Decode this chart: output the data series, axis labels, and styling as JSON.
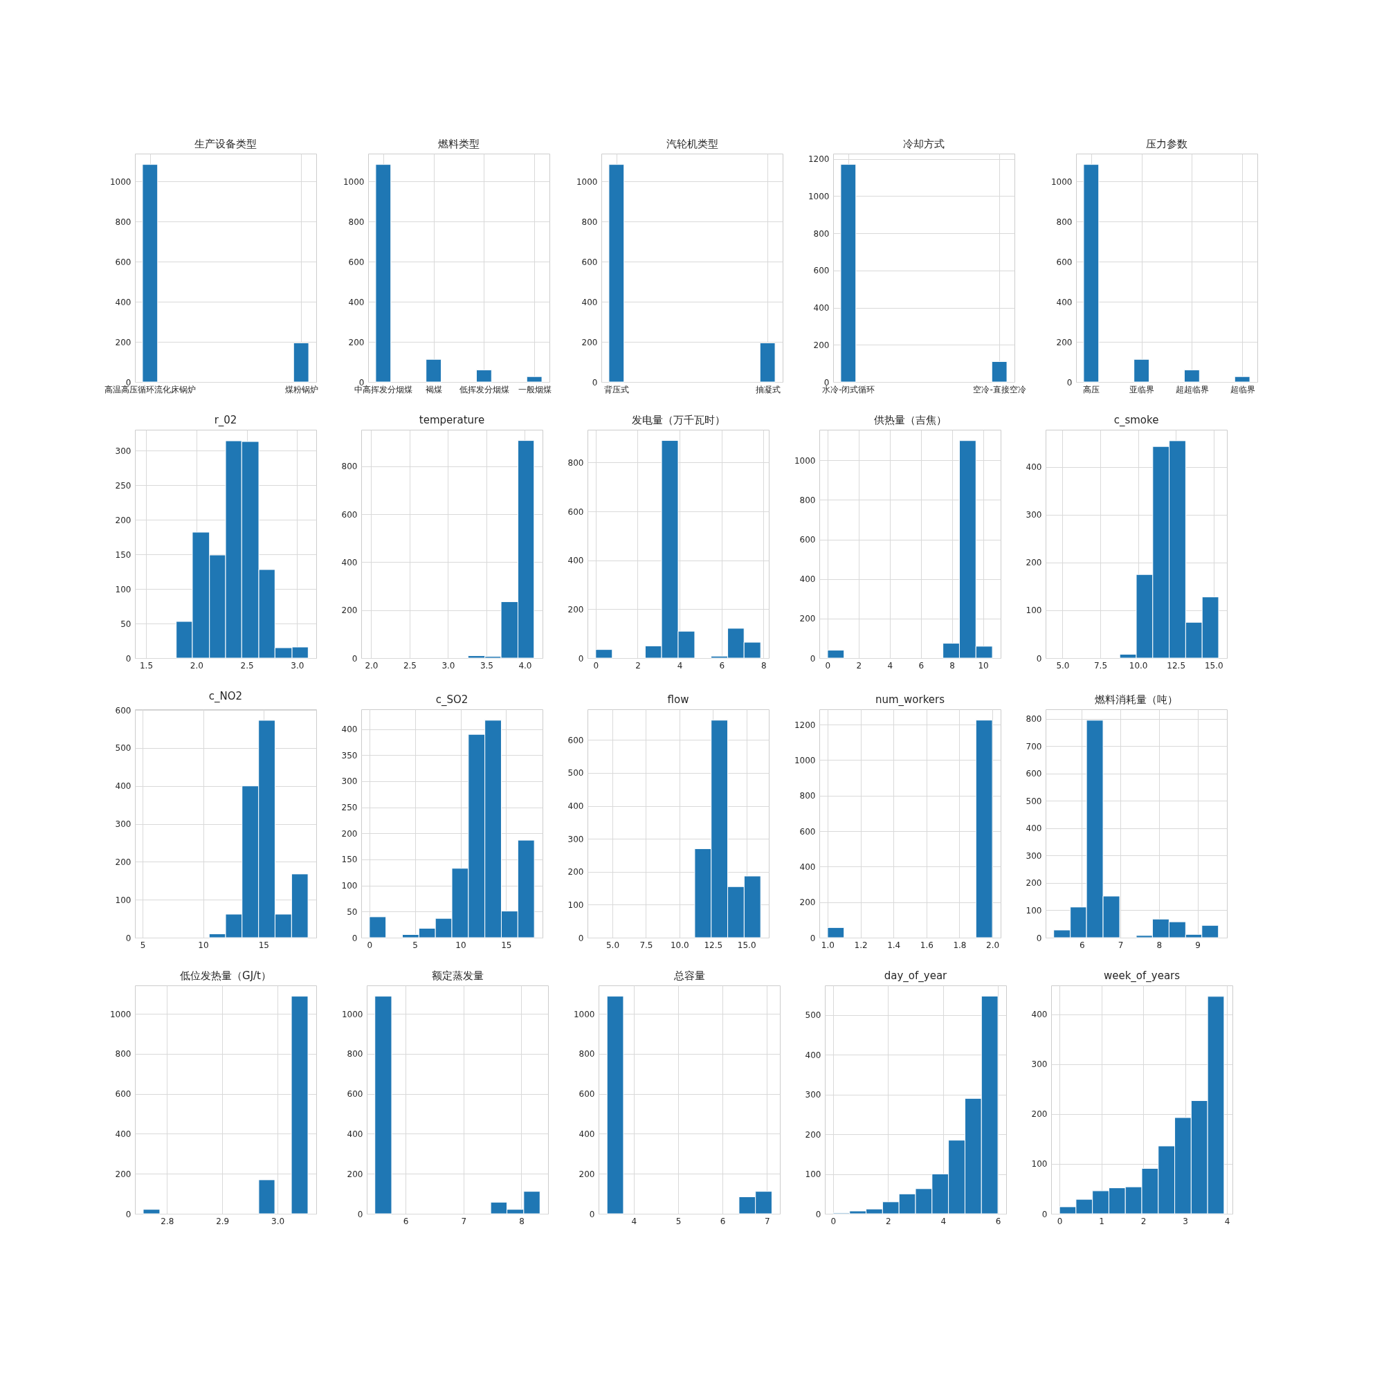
{
  "chart_data": [
    {
      "type": "bar",
      "title": "生产设备类型",
      "color": "#1f77b4",
      "grid": true,
      "categories": [
        "高温高压循环流化床锅炉",
        "煤粉锅炉"
      ],
      "values": [
        1085,
        195
      ],
      "ylim": [
        0,
        1139
      ],
      "yticks": [
        0,
        200,
        400,
        600,
        800,
        1000
      ]
    },
    {
      "type": "bar",
      "title": "燃料类型",
      "color": "#1f77b4",
      "grid": true,
      "categories": [
        "中高挥发分烟煤",
        "褐煤",
        "低挥发分烟煤",
        "一般烟煤"
      ],
      "values": [
        1085,
        113,
        60,
        27
      ],
      "ylim": [
        0,
        1139
      ],
      "yticks": [
        0,
        200,
        400,
        600,
        800,
        1000
      ]
    },
    {
      "type": "bar",
      "title": "汽轮机类型",
      "color": "#1f77b4",
      "grid": true,
      "categories": [
        "背压式",
        "抽凝式"
      ],
      "values": [
        1085,
        195
      ],
      "ylim": [
        0,
        1139
      ],
      "yticks": [
        0,
        200,
        400,
        600,
        800,
        1000
      ]
    },
    {
      "type": "bar",
      "title": "冷却方式",
      "color": "#1f77b4",
      "grid": true,
      "categories": [
        "水冷-闭式循环",
        "空冷-直接空冷"
      ],
      "values": [
        1170,
        110
      ],
      "ylim": [
        0,
        1228
      ],
      "yticks": [
        0,
        200,
        400,
        600,
        800,
        1000,
        1200
      ]
    },
    {
      "type": "bar",
      "title": "压力参数",
      "color": "#1f77b4",
      "grid": true,
      "categories": [
        "高压",
        "亚临界",
        "超超临界",
        "超临界"
      ],
      "values": [
        1085,
        113,
        60,
        27
      ],
      "ylim": [
        0,
        1139
      ],
      "yticks": [
        0,
        200,
        400,
        600,
        800,
        1000
      ]
    },
    {
      "type": "histogram",
      "title": "r_02",
      "color": "#1f77b4",
      "grid": true,
      "bins": [
        1.8,
        1.96,
        2.13,
        2.29,
        2.45,
        2.62,
        2.78,
        2.95,
        3.11
      ],
      "values": [
        53,
        182,
        149,
        314,
        313,
        128,
        15,
        16
      ],
      "xlim": [
        1.39,
        3.19
      ],
      "xticks": [
        1.5,
        {
          "value": 2,
          "label": "2.0"
        },
        2.5,
        {
          "value": 3,
          "label": "3.0"
        }
      ],
      "ylim": [
        0,
        330
      ],
      "yticks": [
        0,
        50,
        100,
        150,
        200,
        250,
        300
      ]
    },
    {
      "type": "histogram",
      "title": "temperature",
      "color": "#1f77b4",
      "grid": true,
      "bins": [
        3.26,
        3.48,
        3.69,
        3.91,
        4.12
      ],
      "values": [
        10,
        7,
        235,
        907
      ],
      "xlim": [
        1.87,
        4.23
      ],
      "xticks": [
        {
          "value": 2,
          "label": "2.0"
        },
        2.5,
        {
          "value": 3,
          "label": "3.0"
        },
        3.5,
        {
          "value": 4,
          "label": "4.0"
        }
      ],
      "ylim": [
        0,
        952
      ],
      "yticks": [
        0,
        200,
        400,
        600,
        800
      ]
    },
    {
      "type": "histogram",
      "title": "发电量（万千瓦时）",
      "color": "#1f77b4",
      "grid": true,
      "bins": [
        0,
        0.79,
        2.36,
        3.14,
        3.93,
        4.72,
        5.5,
        6.29,
        7.07,
        7.86
      ],
      "values": [
        35,
        0,
        50,
        890,
        110,
        0,
        8,
        122,
        65
      ],
      "xlim": [
        -0.39,
        8.25
      ],
      "xticks": [
        0,
        2,
        4,
        6,
        8
      ],
      "ylim": [
        0,
        934
      ],
      "yticks": [
        0,
        200,
        400,
        600,
        800
      ]
    },
    {
      "type": "histogram",
      "title": "供热量（吉焦）",
      "color": "#1f77b4",
      "grid": true,
      "bins": [
        0,
        1.06,
        7.42,
        8.48,
        9.54,
        10.6
      ],
      "values": [
        40,
        0,
        75,
        1100,
        60
      ],
      "xlim": [
        -0.53,
        11.13
      ],
      "xticks": [
        0,
        2,
        4,
        6,
        8,
        10
      ],
      "ylim": [
        0,
        1155
      ],
      "yticks": [
        0,
        200,
        400,
        600,
        800,
        1000
      ]
    },
    {
      "type": "histogram",
      "title": "c_smoke",
      "color": "#1f77b4",
      "grid": true,
      "bins": [
        8.79,
        9.88,
        10.97,
        12.06,
        13.15,
        14.24,
        15.33
      ],
      "values": [
        8,
        175,
        443,
        455,
        75,
        128
      ],
      "xlim": [
        3.88,
        15.88
      ],
      "xticks": [
        {
          "value": 5,
          "label": "5.0"
        },
        7.5,
        {
          "value": 10,
          "label": "10.0"
        },
        12.5,
        {
          "value": 15,
          "label": "15.0"
        }
      ],
      "ylim": [
        0,
        478
      ],
      "yticks": [
        0,
        100,
        200,
        300,
        400
      ]
    },
    {
      "type": "histogram",
      "title": "c_NO2",
      "color": "#1f77b4",
      "grid": true,
      "bins": [
        10.5,
        11.86,
        13.22,
        14.59,
        15.95,
        17.32,
        18.68
      ],
      "values": [
        10,
        62,
        400,
        573,
        62,
        168
      ],
      "xlim": [
        4.36,
        19.36
      ],
      "xticks": [
        5,
        10,
        15
      ],
      "ylim": [
        0,
        602
      ],
      "yticks": [
        0,
        100,
        200,
        300,
        400,
        500,
        600
      ]
    },
    {
      "type": "histogram",
      "title": "c_SO2",
      "color": "#1f77b4",
      "grid": true,
      "bins": [
        0,
        1.81,
        3.62,
        5.43,
        7.24,
        9.05,
        10.86,
        12.67,
        14.48,
        16.29,
        18.1
      ],
      "values": [
        40,
        0,
        6,
        18,
        37,
        133,
        390,
        417,
        51,
        187
      ],
      "xlim": [
        -0.9,
        19.0
      ],
      "xticks": [
        0,
        5,
        10,
        15
      ],
      "ylim": [
        0,
        438
      ],
      "yticks": [
        0,
        50,
        100,
        150,
        200,
        250,
        300,
        350,
        400
      ]
    },
    {
      "type": "histogram",
      "title": "flow",
      "color": "#1f77b4",
      "grid": true,
      "bins": [
        11.14,
        12.37,
        13.6,
        14.83,
        16.06
      ],
      "values": [
        270,
        660,
        155,
        187
      ],
      "xlim": [
        3.14,
        16.67
      ],
      "xticks": [
        {
          "value": 5,
          "label": "5.0"
        },
        7.5,
        {
          "value": 10,
          "label": "10.0"
        },
        12.5,
        {
          "value": 15,
          "label": "15.0"
        }
      ],
      "ylim": [
        0,
        693
      ],
      "yticks": [
        0,
        100,
        200,
        300,
        400,
        500,
        600
      ]
    },
    {
      "type": "histogram",
      "title": "num_workers",
      "color": "#1f77b4",
      "grid": true,
      "bins": [
        1.0,
        1.1,
        1.9,
        2.0
      ],
      "values": [
        57,
        0,
        1225
      ],
      "xlim": [
        0.95,
        2.05
      ],
      "xticks": [
        {
          "value": 1,
          "label": "1.0"
        },
        1.2,
        1.4,
        1.6,
        1.8,
        {
          "value": 2,
          "label": "2.0"
        }
      ],
      "ylim": [
        0,
        1286
      ],
      "yticks": [
        0,
        200,
        400,
        600,
        800,
        1000,
        1200
      ]
    },
    {
      "type": "histogram",
      "title": "燃料消耗量（吨）",
      "color": "#1f77b4",
      "grid": true,
      "bins": [
        5.27,
        5.7,
        6.12,
        6.55,
        6.98,
        7.41,
        7.83,
        8.26,
        8.69,
        9.11,
        9.54
      ],
      "values": [
        28,
        112,
        795,
        152,
        0,
        8,
        68,
        58,
        12,
        45
      ],
      "xlim": [
        5.06,
        9.76
      ],
      "xticks": [
        6,
        7,
        8,
        9
      ],
      "ylim": [
        0,
        835
      ],
      "yticks": [
        0,
        100,
        200,
        300,
        400,
        500,
        600,
        700,
        800
      ]
    },
    {
      "type": "histogram",
      "title": "低位发热量（GJ/t）",
      "color": "#1f77b4",
      "grid": true,
      "bins": [
        2.757,
        2.787,
        2.966,
        2.995,
        3.025,
        3.055
      ],
      "values": [
        22,
        0,
        170,
        0,
        1088
      ],
      "xlim": [
        2.742,
        3.07
      ],
      "xticks": [
        2.8,
        2.9,
        {
          "value": 3,
          "label": "3.0"
        }
      ],
      "ylim": [
        0,
        1142
      ],
      "yticks": [
        0,
        200,
        400,
        600,
        800,
        1000
      ]
    },
    {
      "type": "histogram",
      "title": "额定蒸发量",
      "color": "#1f77b4",
      "grid": true,
      "bins": [
        5.47,
        5.76,
        7.47,
        7.75,
        8.04,
        8.32
      ],
      "values": [
        1088,
        0,
        58,
        22,
        112
      ],
      "xlim": [
        5.33,
        8.46
      ],
      "xticks": [
        6,
        7,
        8
      ],
      "ylim": [
        0,
        1142
      ],
      "yticks": [
        0,
        200,
        400,
        600,
        800,
        1000
      ]
    },
    {
      "type": "histogram",
      "title": "总容量",
      "color": "#1f77b4",
      "grid": true,
      "bins": [
        3.4,
        3.77,
        6.37,
        6.74,
        7.11
      ],
      "values": [
        1088,
        0,
        85,
        112
      ],
      "xlim": [
        3.21,
        7.29
      ],
      "xticks": [
        4,
        5,
        6,
        7
      ],
      "ylim": [
        0,
        1142
      ],
      "yticks": [
        0,
        200,
        400,
        600,
        800,
        1000
      ]
    },
    {
      "type": "histogram",
      "title": "day_of_year",
      "color": "#1f77b4",
      "grid": true,
      "bins": [
        0,
        0.6,
        1.2,
        1.8,
        2.4,
        3.0,
        3.6,
        4.2,
        4.8,
        5.4,
        6.0
      ],
      "values": [
        2,
        7,
        12,
        30,
        50,
        63,
        100,
        185,
        290,
        547
      ],
      "xlim": [
        -0.3,
        6.3
      ],
      "xticks": [
        0,
        2,
        4,
        6
      ],
      "ylim": [
        0,
        574
      ],
      "yticks": [
        0,
        100,
        200,
        300,
        400,
        500
      ]
    },
    {
      "type": "histogram",
      "title": "week_of_years",
      "color": "#1f77b4",
      "grid": true,
      "bins": [
        0,
        0.393,
        0.786,
        1.179,
        1.572,
        1.965,
        2.358,
        2.751,
        3.144,
        3.537,
        3.93
      ],
      "values": [
        14,
        29,
        46,
        52,
        54,
        91,
        136,
        193,
        227,
        436
      ],
      "xlim": [
        -0.2,
        4.13
      ],
      "xticks": [
        0,
        1,
        2,
        3,
        4
      ],
      "ylim": [
        0,
        458
      ],
      "yticks": [
        0,
        100,
        200,
        300,
        400
      ]
    }
  ]
}
